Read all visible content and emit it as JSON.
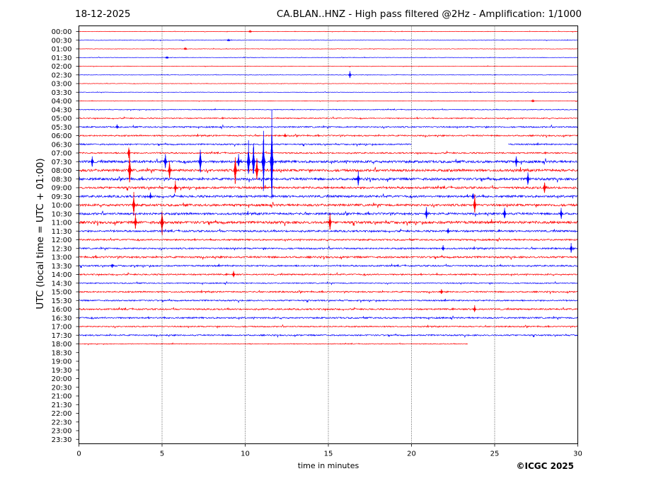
{
  "header": {
    "date": "18-12-2025",
    "title": "CA.BLAN..HNZ - High pass filtered @2Hz - Amplification: 1/1000"
  },
  "footer": {
    "credit": "©ICGC 2025"
  },
  "colors": {
    "red_trace": "#ff0000",
    "blue_trace": "#0000ff",
    "axis": "#000000"
  },
  "chart_data": {
    "type": "line",
    "title": "CA.BLAN..HNZ - High pass filtered @2Hz - Amplification: 1/1000",
    "xlabel": "time in minutes",
    "ylabel": "UTC (local time = UTC + 01:00)",
    "xlim": [
      0,
      30
    ],
    "x_ticks": [
      0,
      5,
      10,
      15,
      20,
      25,
      30
    ],
    "x_tick_labels": [
      "0",
      "5",
      "10",
      "15",
      "20",
      "25",
      "30"
    ],
    "x_gridlines": [
      5,
      10,
      15,
      20,
      25
    ],
    "rows": [
      "00:00",
      "00:30",
      "01:00",
      "01:30",
      "02:00",
      "02:30",
      "03:00",
      "03:30",
      "04:00",
      "04:30",
      "05:00",
      "05:30",
      "06:00",
      "06:30",
      "07:00",
      "07:30",
      "08:00",
      "08:30",
      "09:00",
      "09:30",
      "10:00",
      "10:30",
      "11:00",
      "11:30",
      "12:00",
      "12:30",
      "13:00",
      "13:30",
      "14:00",
      "14:30",
      "15:00",
      "15:30",
      "16:00",
      "16:30",
      "17:00",
      "17:30",
      "18:00",
      "18:30",
      "19:00",
      "19:30",
      "20:00",
      "20:30",
      "21:00",
      "21:30",
      "22:00",
      "22:30",
      "23:00",
      "23:30"
    ],
    "row_colors": [
      "red",
      "blue",
      "red",
      "blue",
      "red",
      "blue",
      "red",
      "blue",
      "red",
      "blue",
      "red",
      "blue",
      "red",
      "blue",
      "red",
      "blue",
      "red",
      "blue",
      "red",
      "blue",
      "red",
      "blue",
      "red",
      "blue",
      "red",
      "blue",
      "red",
      "blue",
      "red",
      "blue",
      "red",
      "blue",
      "red",
      "blue",
      "red",
      "blue",
      "red",
      "blue",
      "red",
      "blue",
      "red",
      "blue",
      "red",
      "blue",
      "red",
      "blue",
      "red",
      "blue"
    ],
    "row_noise": [
      0.3,
      0.3,
      0.3,
      0.3,
      0.3,
      0.3,
      0.3,
      0.3,
      0.3,
      0.5,
      0.7,
      0.9,
      0.9,
      0.9,
      0.9,
      1.6,
      1.6,
      1.6,
      1.4,
      1.4,
      1.5,
      1.4,
      1.7,
      1.2,
      1.0,
      1.0,
      1.2,
      1.0,
      0.9,
      0.7,
      0.9,
      0.9,
      1.0,
      1.0,
      0.8,
      0.9,
      0.5,
      0,
      0,
      0,
      0,
      0,
      0,
      0,
      0,
      0,
      0,
      0
    ],
    "row_end_minutes": [
      30,
      30,
      30,
      30,
      30,
      30,
      30,
      30,
      30,
      30,
      30,
      30,
      30,
      30,
      30,
      30,
      30,
      30,
      30,
      30,
      30,
      30,
      30,
      30,
      30,
      30,
      30,
      30,
      30,
      30,
      30,
      30,
      30,
      30,
      30,
      30,
      23.4,
      0,
      0,
      0,
      0,
      0,
      0,
      0,
      0,
      0,
      0,
      0
    ],
    "gaps": [
      {
        "row": "06:30",
        "from": 20,
        "to": 25.8
      }
    ],
    "events": [
      {
        "row": "00:00",
        "minute": 10.3,
        "amp": 2.5
      },
      {
        "row": "00:30",
        "minute": 9.0,
        "amp": 2.5
      },
      {
        "row": "01:00",
        "minute": 6.4,
        "amp": 2.5
      },
      {
        "row": "01:30",
        "minute": 5.3,
        "amp": 3
      },
      {
        "row": "02:30",
        "minute": 16.3,
        "amp": 6
      },
      {
        "row": "04:00",
        "minute": 27.3,
        "amp": 3
      },
      {
        "row": "05:30",
        "minute": 2.3,
        "amp": 4
      },
      {
        "row": "06:00",
        "minute": 12.4,
        "amp": 4
      },
      {
        "row": "07:00",
        "minute": 3.0,
        "amp": 10
      },
      {
        "row": "07:30",
        "minute": 0.8,
        "amp": 12
      },
      {
        "row": "07:30",
        "minute": 5.2,
        "amp": 14
      },
      {
        "row": "07:30",
        "minute": 7.3,
        "amp": 28
      },
      {
        "row": "07:30",
        "minute": 9.6,
        "amp": 12
      },
      {
        "row": "07:30",
        "minute": 10.2,
        "amp": 40
      },
      {
        "row": "07:30",
        "minute": 10.5,
        "amp": 35
      },
      {
        "row": "07:30",
        "minute": 11.1,
        "amp": 70
      },
      {
        "row": "07:30",
        "minute": 11.6,
        "amp": 80
      },
      {
        "row": "07:30",
        "minute": 26.3,
        "amp": 12
      },
      {
        "row": "08:00",
        "minute": 3.05,
        "amp": 30
      },
      {
        "row": "08:00",
        "minute": 5.45,
        "amp": 20
      },
      {
        "row": "08:00",
        "minute": 9.4,
        "amp": 30
      },
      {
        "row": "08:00",
        "minute": 10.7,
        "amp": 30
      },
      {
        "row": "08:30",
        "minute": 16.8,
        "amp": 12
      },
      {
        "row": "08:30",
        "minute": 27.0,
        "amp": 15
      },
      {
        "row": "09:00",
        "minute": 5.8,
        "amp": 10
      },
      {
        "row": "09:00",
        "minute": 28.0,
        "amp": 15
      },
      {
        "row": "09:30",
        "minute": 4.3,
        "amp": 6
      },
      {
        "row": "09:30",
        "minute": 23.7,
        "amp": 8
      },
      {
        "row": "10:00",
        "minute": 3.3,
        "amp": 20
      },
      {
        "row": "10:00",
        "minute": 23.8,
        "amp": 22
      },
      {
        "row": "10:30",
        "minute": 20.9,
        "amp": 10
      },
      {
        "row": "10:30",
        "minute": 25.6,
        "amp": 14
      },
      {
        "row": "10:30",
        "minute": 29.0,
        "amp": 10
      },
      {
        "row": "11:00",
        "minute": 5.0,
        "amp": 30
      },
      {
        "row": "11:00",
        "minute": 15.1,
        "amp": 16
      },
      {
        "row": "11:00",
        "minute": 3.4,
        "amp": 18
      },
      {
        "row": "11:30",
        "minute": 22.2,
        "amp": 5
      },
      {
        "row": "12:30",
        "minute": 21.9,
        "amp": 6
      },
      {
        "row": "12:30",
        "minute": 29.6,
        "amp": 8
      },
      {
        "row": "13:30",
        "minute": 2.0,
        "amp": 5
      },
      {
        "row": "14:00",
        "minute": 9.3,
        "amp": 6
      },
      {
        "row": "15:00",
        "minute": 21.8,
        "amp": 6
      },
      {
        "row": "16:00",
        "minute": 23.8,
        "amp": 6
      }
    ]
  }
}
